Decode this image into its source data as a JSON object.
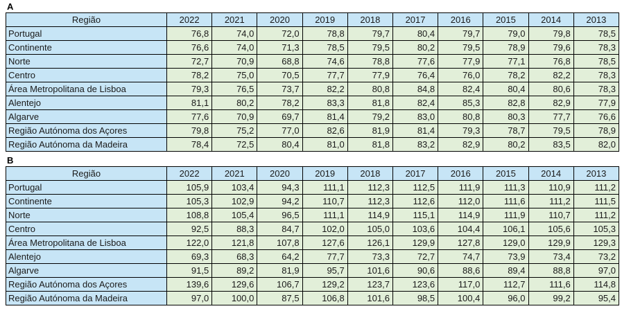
{
  "colors": {
    "header_cell_bg": "#c7e5f6",
    "region_cell_bg": "#c7e5f6",
    "value_cell_bg": "#e2efd9",
    "border": "#000000",
    "text": "#1a1a1a"
  },
  "chart_data": [
    {
      "type": "table",
      "panel_label": "A",
      "region_column_header": "Região",
      "years": [
        "2022",
        "2021",
        "2020",
        "2019",
        "2018",
        "2017",
        "2016",
        "2015",
        "2014",
        "2013"
      ],
      "rows": [
        {
          "region": "Portugal",
          "values": [
            76.8,
            74.0,
            72.0,
            78.8,
            79.7,
            80.4,
            79.7,
            79.0,
            79.8,
            78.5
          ]
        },
        {
          "region": "Continente",
          "values": [
            76.6,
            74.0,
            71.3,
            78.5,
            79.5,
            80.2,
            79.5,
            78.9,
            79.6,
            78.3
          ]
        },
        {
          "region": "Norte",
          "values": [
            72.7,
            70.9,
            68.8,
            74.6,
            78.8,
            77.6,
            77.9,
            77.1,
            76.8,
            78.5
          ]
        },
        {
          "region": "Centro",
          "values": [
            78.2,
            75.0,
            70.5,
            77.7,
            77.9,
            76.4,
            76.0,
            78.2,
            82.2,
            78.3
          ]
        },
        {
          "region": "Área Metropolitana de Lisboa",
          "values": [
            79.3,
            76.5,
            73.7,
            82.2,
            80.8,
            84.8,
            82.4,
            80.4,
            80.6,
            78.3
          ]
        },
        {
          "region": "Alentejo",
          "values": [
            81.1,
            80.2,
            78.2,
            83.3,
            81.8,
            82.4,
            85.3,
            82.8,
            82.9,
            77.9
          ]
        },
        {
          "region": "Algarve",
          "values": [
            77.6,
            70.9,
            69.7,
            81.4,
            79.2,
            83.0,
            80.8,
            80.3,
            77.7,
            76.6
          ]
        },
        {
          "region": "Região Autónoma dos Açores",
          "values": [
            79.8,
            75.2,
            77.0,
            82.6,
            81.9,
            81.4,
            79.3,
            78.7,
            79.5,
            78.9
          ]
        },
        {
          "region": "Região Autónoma da Madeira",
          "values": [
            78.4,
            72.5,
            80.4,
            81.0,
            81.8,
            83.2,
            82.9,
            80.2,
            83.5,
            82.0
          ]
        }
      ]
    },
    {
      "type": "table",
      "panel_label": "B",
      "region_column_header": "Região",
      "years": [
        "2022",
        "2021",
        "2020",
        "2019",
        "2018",
        "2017",
        "2016",
        "2015",
        "2014",
        "2013"
      ],
      "rows": [
        {
          "region": "Portugal",
          "values": [
            105.9,
            103.4,
            94.3,
            111.1,
            112.3,
            112.5,
            111.9,
            111.3,
            110.9,
            111.2
          ]
        },
        {
          "region": "Continente",
          "values": [
            105.3,
            102.9,
            94.2,
            110.7,
            112.3,
            112.6,
            112.0,
            111.6,
            111.2,
            111.5
          ]
        },
        {
          "region": "Norte",
          "values": [
            108.8,
            105.4,
            96.5,
            111.1,
            114.9,
            115.1,
            114.9,
            111.9,
            110.7,
            111.2
          ]
        },
        {
          "region": "Centro",
          "values": [
            92.5,
            88.3,
            84.7,
            102.0,
            105.0,
            103.6,
            104.4,
            106.1,
            105.6,
            105.3
          ]
        },
        {
          "region": "Área Metropolitana de Lisboa",
          "values": [
            122.0,
            121.8,
            107.8,
            127.6,
            126.1,
            129.9,
            127.8,
            129.0,
            129.9,
            129.3
          ]
        },
        {
          "region": "Alentejo",
          "values": [
            69.3,
            68.3,
            64.2,
            77.7,
            73.3,
            72.7,
            74.7,
            73.9,
            73.4,
            73.2
          ]
        },
        {
          "region": "Algarve",
          "values": [
            91.5,
            89.2,
            81.9,
            95.7,
            101.6,
            90.6,
            88.6,
            89.4,
            88.8,
            97.0
          ]
        },
        {
          "region": "Região Autónoma dos Açores",
          "values": [
            139.6,
            129.6,
            106.7,
            129.2,
            123.7,
            123.6,
            117.0,
            112.7,
            111.6,
            114.8
          ]
        },
        {
          "region": "Região Autónoma da Madeira",
          "values": [
            97.0,
            100.0,
            87.5,
            106.8,
            101.6,
            98.5,
            100.4,
            96.0,
            99.2,
            95.4
          ]
        }
      ]
    }
  ]
}
